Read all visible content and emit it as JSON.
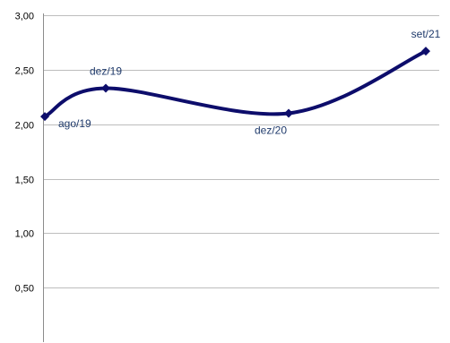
{
  "chart_data": {
    "type": "line",
    "title": "",
    "xlabel": "",
    "ylabel": "",
    "ylim": [
      0.0,
      3.0
    ],
    "yticks": [
      0.5,
      1.0,
      1.5,
      2.0,
      2.5,
      3.0
    ],
    "ytick_labels": [
      "0,50",
      "1,00",
      "1,50",
      "2,00",
      "2,50",
      "3,00"
    ],
    "grid": true,
    "legend": "none",
    "series": [
      {
        "x": [
          "ago/19",
          "dez/19",
          "dez/20",
          "set/21"
        ],
        "values": [
          2.07,
          2.33,
          2.1,
          2.67
        ],
        "data_labels": [
          "ago/19",
          "dez/19",
          "dez/20",
          "set/21"
        ],
        "data_label_positions": [
          "below-right",
          "above",
          "below",
          "above"
        ]
      }
    ],
    "colors": {
      "line": "#0d0d6b",
      "grid": "#bdbdbd",
      "axis": "#8c8c8c",
      "data_label": "#1f3a6b"
    }
  }
}
